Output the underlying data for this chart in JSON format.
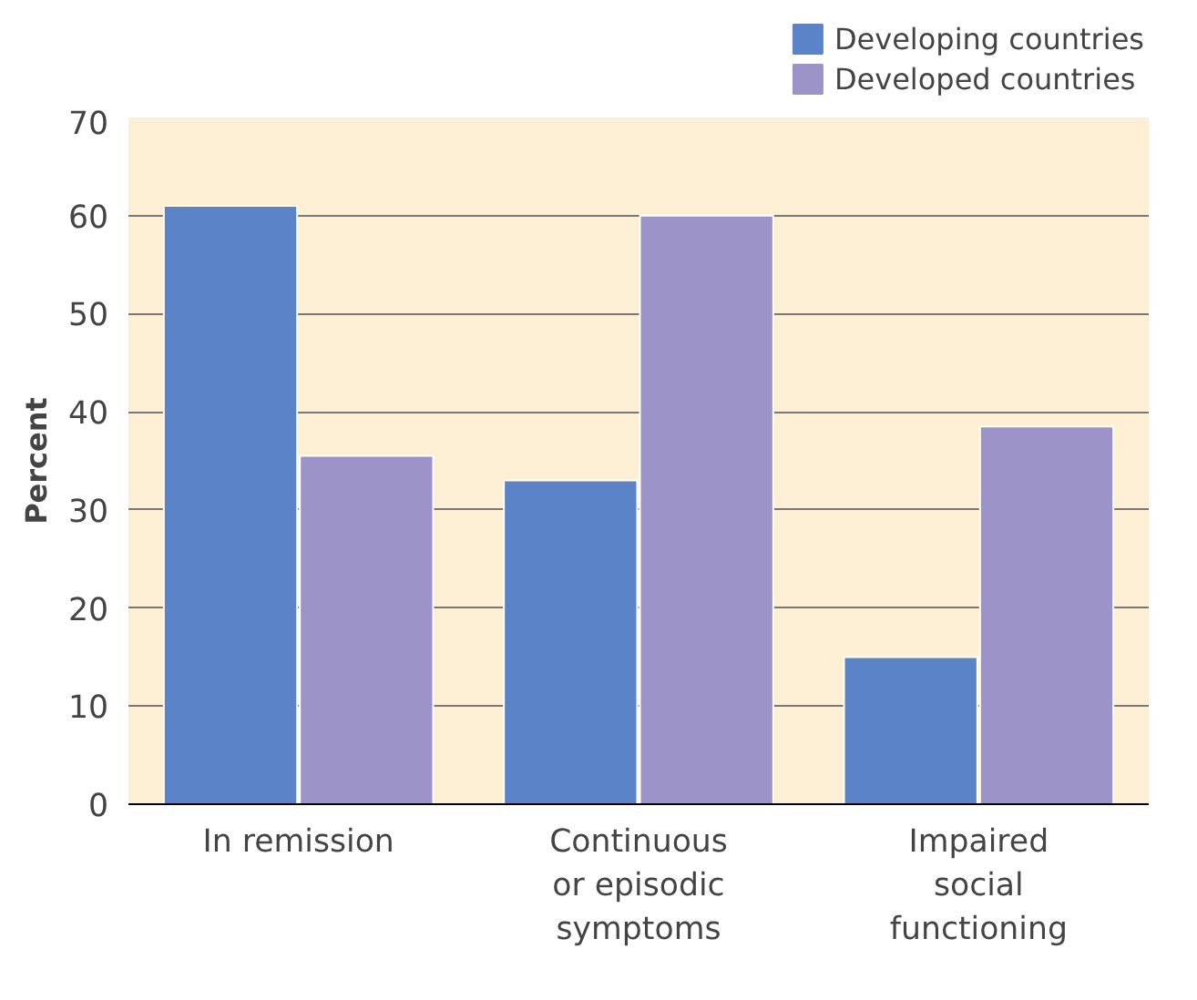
{
  "chart_data": {
    "type": "bar",
    "ylabel": "Percent",
    "categories": [
      "In remission",
      "Continuous\nor episodic\nsymptoms",
      "Impaired\nsocial\nfunctioning"
    ],
    "series": [
      {
        "name": "Developing countries",
        "color": "#5b84c8",
        "values": [
          61,
          33,
          15
        ]
      },
      {
        "name": "Developed countries",
        "color": "#9c94c9",
        "values": [
          35.5,
          60,
          38.5
        ]
      }
    ],
    "ylim": [
      0,
      70
    ],
    "yticks": [
      0,
      10,
      20,
      30,
      40,
      50,
      60,
      70
    ],
    "grid": "y",
    "legend": "top right"
  }
}
